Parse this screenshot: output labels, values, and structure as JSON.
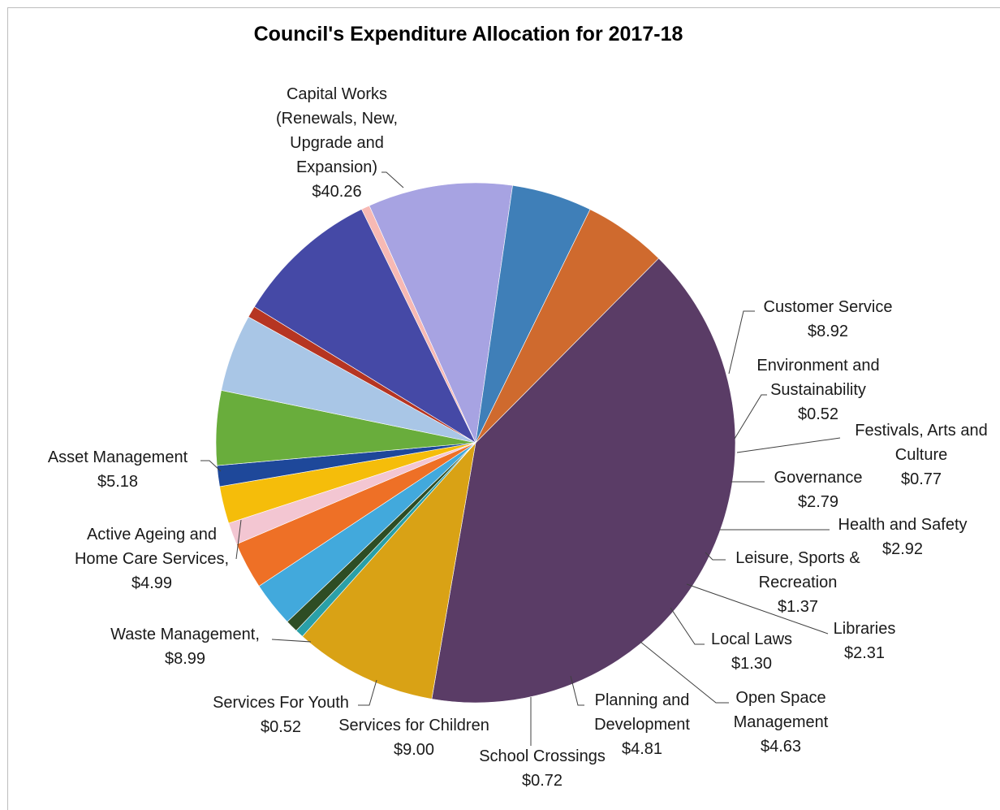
{
  "chart_data": {
    "type": "pie",
    "title": "Council's Expenditure Allocation for 2017-18",
    "slices": [
      {
        "label": [
          "Capital Works",
          "(Renewals, New,",
          "Upgrade and",
          "Expansion)"
        ],
        "value_label": "$40.26",
        "value": 40.26,
        "color": "#5a3c66"
      },
      {
        "label": [
          "Customer Service"
        ],
        "value_label": "$8.92",
        "value": 8.92,
        "color": "#d9a215"
      },
      {
        "label": [
          "Environment and",
          "Sustainability"
        ],
        "value_label": "$0.52",
        "value": 0.52,
        "color": "#2aa0a8"
      },
      {
        "label": [
          "Festivals, Arts and",
          "Culture"
        ],
        "value_label": "$0.77",
        "value": 0.77,
        "color": "#2e4d24"
      },
      {
        "label": [
          "Governance"
        ],
        "value_label": "$2.79",
        "value": 2.79,
        "color": "#42a9dc"
      },
      {
        "label": [
          "Health and Safety"
        ],
        "value_label": "$2.92",
        "value": 2.92,
        "color": "#ee7026"
      },
      {
        "label": [
          "Leisure, Sports &",
          "Recreation"
        ],
        "value_label": "$1.37",
        "value": 1.37,
        "color": "#f3c6d2"
      },
      {
        "label": [
          "Libraries"
        ],
        "value_label": "$2.31",
        "value": 2.31,
        "color": "#f5bd0a"
      },
      {
        "label": [
          "Local Laws"
        ],
        "value_label": "$1.30",
        "value": 1.3,
        "color": "#1e489a"
      },
      {
        "label": [
          "Open Space",
          "Management"
        ],
        "value_label": "$4.63",
        "value": 4.63,
        "color": "#69ad3c"
      },
      {
        "label": [
          "Planning and",
          "Development"
        ],
        "value_label": "$4.81",
        "value": 4.81,
        "color": "#a9c6e6"
      },
      {
        "label": [
          "School Crossings"
        ],
        "value_label": "$0.72",
        "value": 0.72,
        "color": "#b63522"
      },
      {
        "label": [
          "Services for Children"
        ],
        "value_label": "$9.00",
        "value": 9.0,
        "color": "#4549a6"
      },
      {
        "label": [
          "Services For Youth"
        ],
        "value_label": "$0.52",
        "value": 0.52,
        "color": "#f7b9b4"
      },
      {
        "label": [
          "Waste Management,"
        ],
        "value_label": "$8.99",
        "value": 8.99,
        "color": "#a7a3e2"
      },
      {
        "label": [
          "Active Ageing and",
          "Home Care Services,"
        ],
        "value_label": "$4.99",
        "value": 4.99,
        "color": "#3f7fb8"
      },
      {
        "label": [
          "Asset Management"
        ],
        "value_label": "$5.18",
        "value": 5.18,
        "color": "#cf6a2e"
      }
    ]
  }
}
